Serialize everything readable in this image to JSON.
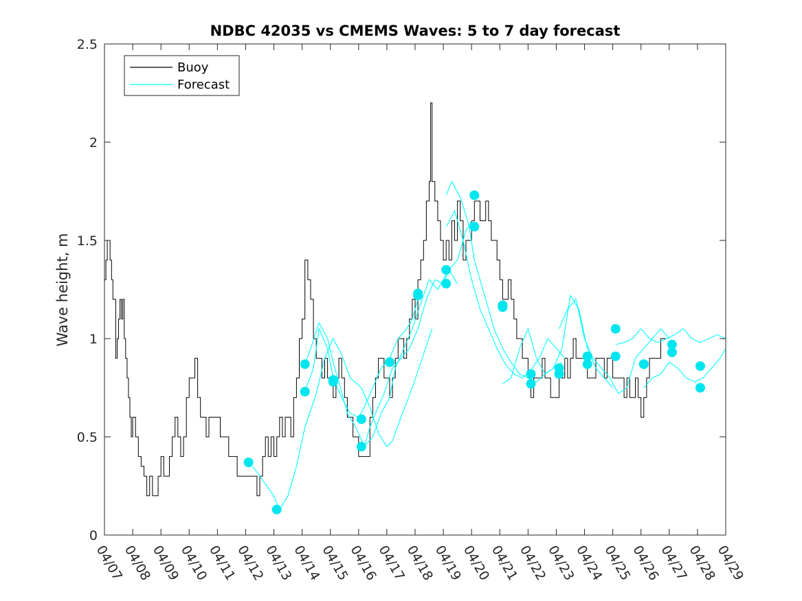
{
  "chart_data": {
    "type": "line",
    "title": "NDBC 42035 vs CMEMS Waves: 5 to 7 day forecast",
    "xlabel": "",
    "ylabel": "Wave height, m",
    "xlim": [
      "04/07",
      "04/29"
    ],
    "ylim": [
      0,
      2.5
    ],
    "x_tick_labels": [
      "04/07",
      "04/08",
      "04/09",
      "04/10",
      "04/11",
      "04/12",
      "04/13",
      "04/14",
      "04/15",
      "04/16",
      "04/17",
      "04/18",
      "04/19",
      "04/20",
      "04/21",
      "04/22",
      "04/23",
      "04/24",
      "04/25",
      "04/26",
      "04/27",
      "04/28",
      "04/29"
    ],
    "y_ticks": [
      0,
      0.5,
      1,
      1.5,
      2,
      2.5
    ],
    "y_tick_labels": [
      "0",
      "0.5",
      "1",
      "1.5",
      "2",
      "2.5"
    ],
    "grid": false,
    "legend_position": "top-left",
    "colors": {
      "buoy": "#000000",
      "forecast": "#00FFFF",
      "markers": "#00E5EE",
      "axes": "#262626"
    },
    "series": [
      {
        "name": "Buoy",
        "color": "#000000",
        "x_days_from_0407": [
          0,
          0.05,
          0.1,
          0.2,
          0.25,
          0.3,
          0.4,
          0.45,
          0.5,
          0.55,
          0.6,
          0.65,
          0.7,
          0.75,
          0.8,
          0.85,
          0.9,
          0.95,
          1.0,
          1.1,
          1.2,
          1.3,
          1.4,
          1.5,
          1.6,
          1.7,
          1.8,
          1.9,
          2.0,
          2.1,
          2.2,
          2.3,
          2.4,
          2.5,
          2.6,
          2.7,
          2.8,
          2.9,
          3.0,
          3.1,
          3.2,
          3.3,
          3.4,
          3.5,
          3.6,
          3.7,
          3.8,
          3.9,
          4.0,
          4.1,
          4.2,
          4.3,
          4.4,
          4.5,
          4.6,
          4.7,
          4.8,
          4.9,
          5.0,
          5.1,
          5.2,
          5.3,
          5.4,
          5.5,
          5.6,
          5.7,
          5.8,
          5.9,
          6.0,
          6.1,
          6.2,
          6.3,
          6.4,
          6.5,
          6.6,
          6.7,
          6.8,
          6.9,
          7.0,
          7.1,
          7.2,
          7.3,
          7.4,
          7.5,
          7.6,
          7.7,
          7.8,
          7.9,
          8.0,
          8.1,
          8.2,
          8.3,
          8.4,
          8.5,
          8.6,
          8.7,
          8.8,
          8.9,
          9.0,
          9.1,
          9.2,
          9.3,
          9.4,
          9.5,
          9.6,
          9.7,
          9.8,
          9.9,
          10.0,
          10.1,
          10.2,
          10.3,
          10.4,
          10.5,
          10.6,
          10.7,
          10.8,
          10.9,
          11.0,
          11.1,
          11.2,
          11.3,
          11.4,
          11.5,
          11.55,
          11.6,
          11.7,
          11.8,
          11.9,
          12.0,
          12.1,
          12.2,
          12.3,
          12.4,
          12.5,
          12.6,
          12.7,
          12.8,
          12.9,
          13.0,
          13.1,
          13.2,
          13.3,
          13.4,
          13.5,
          13.6,
          13.7,
          13.8,
          13.9,
          14.0,
          14.1,
          14.2,
          14.3,
          14.4,
          14.5,
          14.6,
          14.7,
          14.8,
          14.9,
          15.0,
          15.1,
          15.2,
          15.3,
          15.4,
          15.5,
          15.6,
          15.7,
          15.8,
          15.9,
          16.0,
          16.1,
          16.2,
          16.3,
          16.4,
          16.5,
          16.6,
          16.7,
          16.8,
          16.9,
          17.0,
          17.1,
          17.2,
          17.3,
          17.4,
          17.5,
          17.6,
          17.7,
          17.8,
          17.9,
          18.0,
          18.1,
          18.2,
          18.3,
          18.4,
          18.5,
          18.6,
          18.7,
          18.8,
          18.9,
          19.0,
          19.1,
          19.2,
          19.3,
          19.4,
          19.5,
          19.6,
          19.7,
          19.8,
          19.9,
          20.0,
          20.1,
          20.2,
          20.3,
          20.4,
          20.5,
          20.6,
          20.7,
          20.8,
          20.9,
          21.0,
          21.1,
          21.2,
          21.3,
          21.4,
          21.5,
          21.6,
          21.7,
          21.8,
          21.9,
          22.0
        ],
        "values": [
          1.3,
          1.4,
          1.5,
          1.4,
          1.3,
          1.2,
          0.9,
          1.0,
          1.1,
          1.2,
          1.1,
          1.2,
          1.0,
          0.9,
          0.8,
          0.7,
          0.6,
          0.5,
          0.6,
          0.5,
          0.4,
          0.35,
          0.3,
          0.2,
          0.3,
          0.2,
          0.2,
          0.3,
          0.4,
          0.3,
          0.3,
          0.4,
          0.5,
          0.6,
          0.5,
          0.4,
          0.5,
          0.7,
          0.8,
          0.8,
          0.9,
          0.7,
          0.6,
          0.6,
          0.5,
          0.6,
          0.6,
          0.6,
          0.6,
          0.5,
          0.5,
          0.5,
          0.4,
          0.4,
          0.4,
          0.3,
          0.3,
          0.3,
          0.3,
          0.3,
          0.3,
          0.3,
          0.2,
          0.3,
          0.4,
          0.5,
          0.4,
          0.5,
          0.4,
          0.5,
          0.6,
          0.5,
          0.6,
          0.6,
          0.5,
          0.7,
          0.8,
          1.0,
          1.1,
          1.4,
          1.3,
          1.2,
          1.0,
          0.9,
          0.9,
          0.8,
          0.9,
          0.8,
          0.8,
          0.7,
          0.8,
          0.9,
          0.8,
          0.7,
          0.6,
          0.6,
          0.5,
          0.5,
          0.4,
          0.4,
          0.4,
          0.4,
          0.6,
          0.7,
          0.8,
          0.9,
          0.9,
          0.8,
          0.8,
          0.7,
          0.8,
          0.9,
          1.0,
          1.0,
          0.9,
          1.0,
          1.1,
          1.2,
          1.1,
          1.3,
          1.4,
          1.5,
          1.7,
          1.8,
          2.2,
          1.8,
          1.7,
          1.6,
          1.5,
          1.4,
          1.5,
          1.4,
          1.6,
          1.5,
          1.7,
          1.6,
          1.4,
          1.5,
          1.5,
          1.6,
          1.7,
          1.7,
          1.6,
          1.6,
          1.7,
          1.6,
          1.5,
          1.5,
          1.4,
          1.3,
          1.2,
          1.2,
          1.3,
          1.2,
          1.1,
          1.0,
          1.0,
          0.9,
          0.9,
          0.8,
          0.7,
          0.8,
          0.8,
          0.8,
          0.9,
          0.8,
          0.8,
          0.7,
          0.7,
          0.7,
          0.8,
          0.8,
          0.9,
          0.8,
          0.9,
          1.0,
          0.9,
          0.9,
          0.9,
          0.9,
          0.8,
          0.8,
          0.8,
          0.9,
          0.9,
          0.9,
          0.8,
          0.9,
          0.9,
          0.8,
          0.8,
          0.8,
          0.8,
          0.7,
          0.8,
          0.7,
          0.7,
          0.8,
          0.7,
          0.6,
          0.7,
          0.8,
          0.9,
          0.9,
          0.9,
          0.9,
          1.0,
          1.0
        ]
      },
      {
        "name": "Forecast",
        "color": "#00FFFF",
        "runs": [
          {
            "x": [
              5.1,
              5.3,
              5.6,
              6.0,
              6.2,
              6.5,
              6.8,
              7.1,
              7.5,
              7.8,
              8.1,
              8.4,
              8.7,
              9.1,
              9.4,
              9.7,
              10.0,
              10.2,
              10.5,
              10.9,
              11.3,
              11.6
            ],
            "y": [
              0.37,
              0.34,
              0.28,
              0.2,
              0.13,
              0.2,
              0.35,
              0.55,
              0.72,
              0.9,
              1.0,
              0.92,
              0.8,
              0.75,
              0.65,
              0.52,
              0.45,
              0.48,
              0.6,
              0.75,
              0.92,
              1.05
            ]
          },
          {
            "x": [
              7.1,
              7.4,
              7.6,
              7.9,
              8.1,
              8.4,
              8.7,
              9.0,
              9.2,
              9.5,
              9.8,
              10.1,
              10.4,
              10.7,
              10.9,
              11.1
            ],
            "y": [
              0.73,
              0.85,
              1.05,
              0.95,
              0.8,
              0.7,
              0.62,
              0.6,
              0.65,
              0.75,
              0.85,
              0.9,
              1.0,
              1.05,
              1.1,
              1.2
            ]
          },
          {
            "x": [
              7.1,
              7.3,
              7.6,
              7.9,
              8.1,
              8.3,
              8.6,
              8.9,
              9.2,
              9.5,
              9.8,
              10.1,
              10.3,
              10.6,
              10.9,
              11.2,
              11.5,
              11.8,
              12.0,
              12.2,
              12.5
            ],
            "y": [
              0.87,
              0.95,
              1.08,
              1.0,
              0.88,
              0.78,
              0.62,
              0.55,
              0.45,
              0.5,
              0.62,
              0.7,
              0.85,
              0.95,
              1.05,
              1.18,
              1.3,
              1.25,
              1.3,
              1.35,
              1.28
            ]
          },
          {
            "x": [
              9.2,
              9.4,
              9.6,
              9.9,
              10.2,
              10.5,
              10.8,
              11.1,
              11.4,
              11.7,
              12.0,
              12.2,
              12.5,
              12.8,
              13.0
            ],
            "y": [
              0.45,
              0.55,
              0.62,
              0.72,
              0.85,
              0.9,
              0.95,
              1.05,
              1.2,
              1.3,
              1.28,
              1.35,
              1.4,
              1.55,
              1.6
            ]
          },
          {
            "x": [
              12.1,
              12.3,
              12.6,
              12.9,
              13.1,
              13.4,
              13.6,
              13.8,
              14.1,
              14.4,
              14.7,
              15.0,
              15.3,
              15.6,
              15.9,
              16.2
            ],
            "y": [
              1.73,
              1.8,
              1.72,
              1.58,
              1.4,
              1.25,
              1.15,
              1.05,
              0.95,
              0.88,
              0.82,
              0.8,
              0.78,
              0.82,
              0.85,
              0.88
            ]
          },
          {
            "x": [
              12.1,
              12.4,
              12.7,
              13.0,
              13.3,
              13.6,
              13.9,
              14.2,
              14.5,
              14.8,
              15.1,
              15.4,
              15.7,
              16.0,
              16.3
            ],
            "y": [
              1.57,
              1.65,
              1.5,
              1.3,
              1.15,
              1.05,
              0.95,
              0.87,
              0.82,
              0.8,
              0.84,
              0.9,
              1.0,
              0.95,
              0.9
            ]
          },
          {
            "x": [
              14.1,
              14.4,
              14.7,
              15.0,
              15.3,
              15.6,
              15.9,
              16.2,
              16.5,
              16.8,
              17.1,
              17.4,
              17.7,
              18.0
            ],
            "y": [
              0.77,
              0.8,
              0.95,
              1.05,
              0.9,
              0.82,
              0.85,
              0.95,
              1.22,
              1.15,
              0.95,
              0.85,
              0.8,
              0.75
            ]
          },
          {
            "x": [
              16.1,
              16.4,
              16.7,
              17.0,
              17.3,
              17.6,
              17.9,
              18.2,
              18.5,
              18.8,
              19.1,
              19.4,
              19.7,
              20.0
            ],
            "y": [
              1.05,
              1.15,
              1.2,
              1.0,
              0.9,
              0.85,
              0.8,
              0.72,
              0.75,
              0.9,
              0.95,
              1.0,
              1.05,
              1.0
            ]
          },
          {
            "x": [
              18.1,
              18.4,
              18.7,
              19.0,
              19.3,
              19.6,
              19.9,
              20.2,
              20.5,
              20.8,
              21.1,
              21.4,
              21.7,
              22.0
            ],
            "y": [
              0.97,
              0.98,
              1.0,
              1.05,
              1.0,
              0.98,
              1.0,
              1.02,
              1.05,
              1.0,
              0.98,
              1.0,
              1.02,
              1.0
            ]
          },
          {
            "x": [
              19.1,
              19.4,
              19.7,
              20.0,
              20.3,
              20.6,
              20.9,
              21.2,
              21.5,
              21.8,
              22.0
            ],
            "y": [
              0.75,
              0.8,
              0.82,
              0.88,
              0.85,
              0.8,
              0.78,
              0.8,
              0.85,
              0.9,
              0.95
            ]
          }
        ]
      }
    ],
    "markers": [
      {
        "x": 5.1,
        "y": 0.37
      },
      {
        "x": 6.1,
        "y": 0.13
      },
      {
        "x": 7.1,
        "y": 0.87
      },
      {
        "x": 7.1,
        "y": 0.73
      },
      {
        "x": 8.1,
        "y": 0.79
      },
      {
        "x": 8.1,
        "y": 0.78
      },
      {
        "x": 9.1,
        "y": 0.59
      },
      {
        "x": 9.1,
        "y": 0.45
      },
      {
        "x": 10.1,
        "y": 0.88
      },
      {
        "x": 10.1,
        "y": 0.88
      },
      {
        "x": 11.1,
        "y": 1.22
      },
      {
        "x": 11.1,
        "y": 1.23
      },
      {
        "x": 12.1,
        "y": 1.35
      },
      {
        "x": 12.1,
        "y": 1.28
      },
      {
        "x": 13.1,
        "y": 1.73
      },
      {
        "x": 13.1,
        "y": 1.57
      },
      {
        "x": 14.1,
        "y": 1.17
      },
      {
        "x": 14.1,
        "y": 1.16
      },
      {
        "x": 15.1,
        "y": 0.82
      },
      {
        "x": 15.1,
        "y": 0.77
      },
      {
        "x": 16.1,
        "y": 0.85
      },
      {
        "x": 16.1,
        "y": 0.82
      },
      {
        "x": 17.1,
        "y": 0.91
      },
      {
        "x": 17.1,
        "y": 0.87
      },
      {
        "x": 18.1,
        "y": 1.05
      },
      {
        "x": 18.1,
        "y": 0.91
      },
      {
        "x": 19.1,
        "y": 0.87
      },
      {
        "x": 19.1,
        "y": 0.87
      },
      {
        "x": 20.1,
        "y": 0.97
      },
      {
        "x": 20.1,
        "y": 0.93
      },
      {
        "x": 21.1,
        "y": 0.86
      },
      {
        "x": 21.1,
        "y": 0.75
      }
    ]
  }
}
